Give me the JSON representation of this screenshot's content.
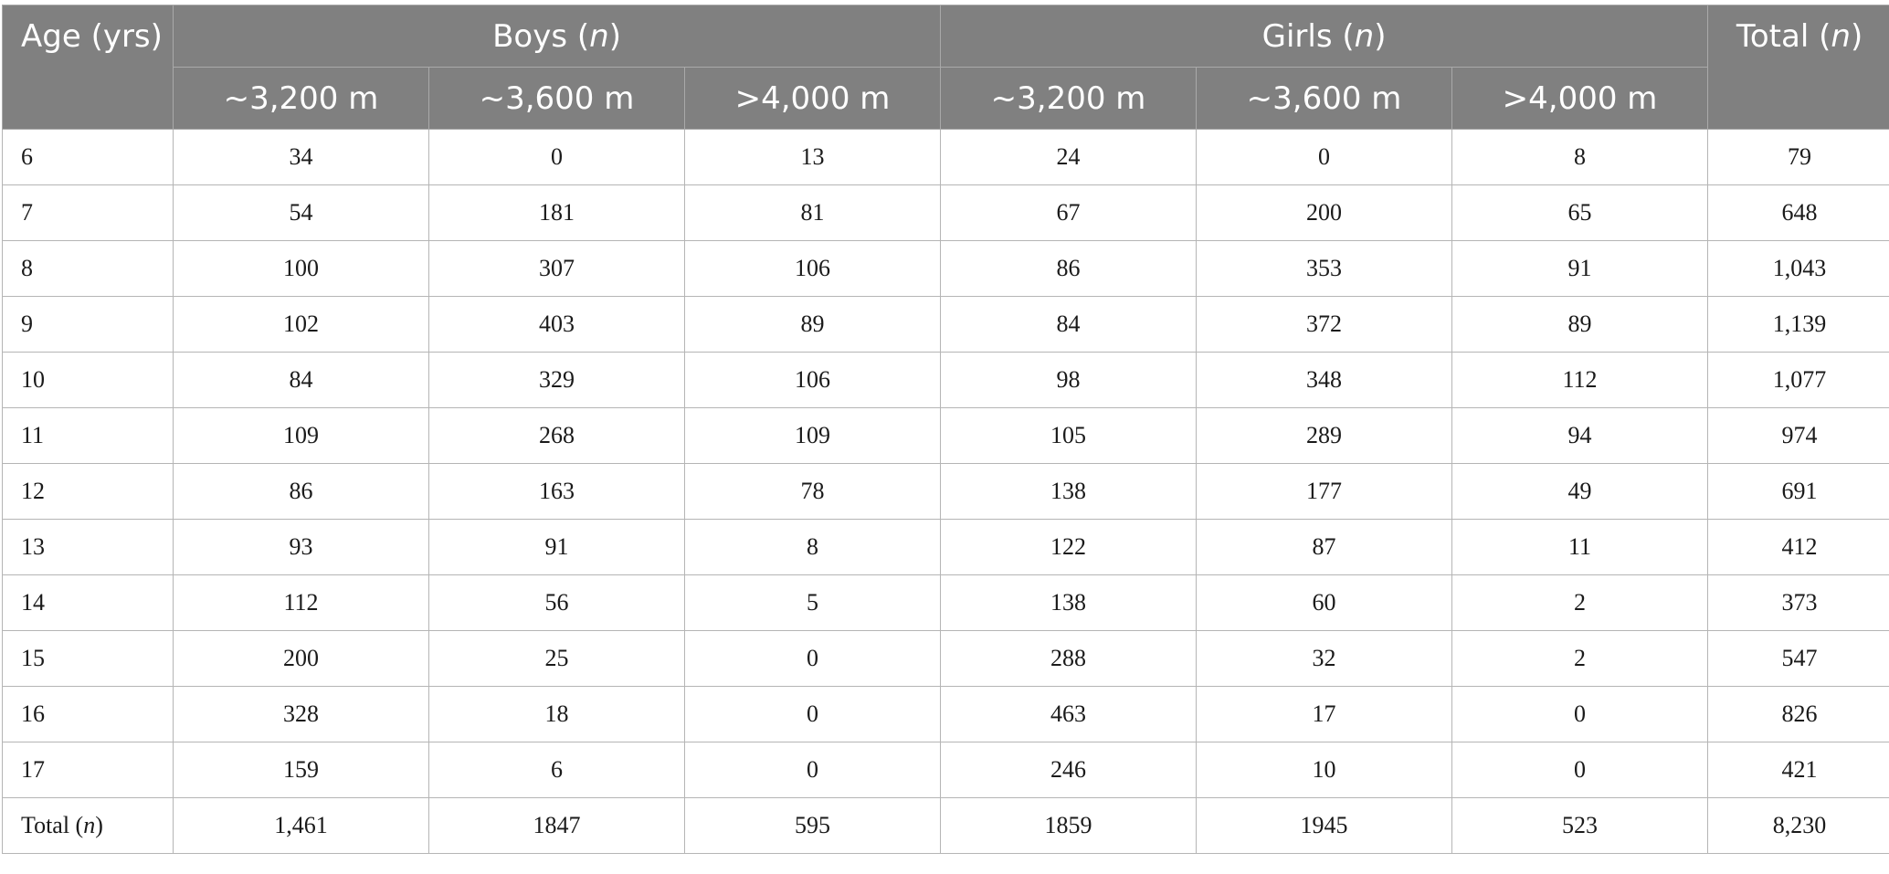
{
  "header": {
    "age": "Age (yrs)",
    "boys_prefix": "Boys (",
    "girls_prefix": "Girls (",
    "total_prefix": "Total (",
    "n": "n",
    "close": ")",
    "altitudes": [
      "~3,200 m",
      "~3,600 m",
      ">4,000 m"
    ]
  },
  "rows": [
    {
      "age": "6",
      "boys": [
        "34",
        "0",
        "13"
      ],
      "girls": [
        "24",
        "0",
        "8"
      ],
      "total": "79"
    },
    {
      "age": "7",
      "boys": [
        "54",
        "181",
        "81"
      ],
      "girls": [
        "67",
        "200",
        "65"
      ],
      "total": "648"
    },
    {
      "age": "8",
      "boys": [
        "100",
        "307",
        "106"
      ],
      "girls": [
        "86",
        "353",
        "91"
      ],
      "total": "1,043"
    },
    {
      "age": "9",
      "boys": [
        "102",
        "403",
        "89"
      ],
      "girls": [
        "84",
        "372",
        "89"
      ],
      "total": "1,139"
    },
    {
      "age": "10",
      "boys": [
        "84",
        "329",
        "106"
      ],
      "girls": [
        "98",
        "348",
        "112"
      ],
      "total": "1,077"
    },
    {
      "age": "11",
      "boys": [
        "109",
        "268",
        "109"
      ],
      "girls": [
        "105",
        "289",
        "94"
      ],
      "total": "974"
    },
    {
      "age": "12",
      "boys": [
        "86",
        "163",
        "78"
      ],
      "girls": [
        "138",
        "177",
        "49"
      ],
      "total": "691"
    },
    {
      "age": "13",
      "boys": [
        "93",
        "91",
        "8"
      ],
      "girls": [
        "122",
        "87",
        "11"
      ],
      "total": "412"
    },
    {
      "age": "14",
      "boys": [
        "112",
        "56",
        "5"
      ],
      "girls": [
        "138",
        "60",
        "2"
      ],
      "total": "373"
    },
    {
      "age": "15",
      "boys": [
        "200",
        "25",
        "0"
      ],
      "girls": [
        "288",
        "32",
        "2"
      ],
      "total": "547"
    },
    {
      "age": "16",
      "boys": [
        "328",
        "18",
        "0"
      ],
      "girls": [
        "463",
        "17",
        "0"
      ],
      "total": "826"
    },
    {
      "age": "17",
      "boys": [
        "159",
        "6",
        "0"
      ],
      "girls": [
        "246",
        "10",
        "0"
      ],
      "total": "421"
    }
  ],
  "totals": {
    "label_prefix": "Total (",
    "label_n": "n",
    "label_close": ")",
    "boys": [
      "1,461",
      "1847",
      "595"
    ],
    "girls": [
      "1859",
      "1945",
      "523"
    ],
    "total": "8,230"
  }
}
